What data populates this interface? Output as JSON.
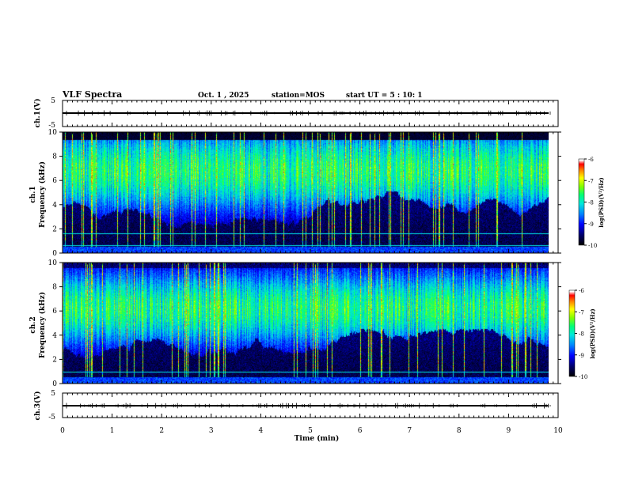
{
  "header": {
    "title": "VLF Spectra",
    "date": "Oct. 1 , 2025",
    "station": "station=MOS",
    "start_time": "start UT =  5 : 10: 1"
  },
  "chart_data": [
    {
      "type": "line",
      "name": "ch1-waveform",
      "ylabel": "ch.1(V)",
      "ylim": [
        -5,
        5
      ],
      "y_ticks": [
        "5",
        "-5"
      ],
      "baseline": 0,
      "xlim": [
        0,
        10
      ]
    },
    {
      "type": "heatmap",
      "name": "ch1-spectrogram",
      "ylabel_channel": "ch.1",
      "ylabel": "Frequency (kHz)",
      "ylim": [
        0,
        10
      ],
      "y_ticks": [
        "0",
        "2",
        "4",
        "6",
        "8",
        "10"
      ],
      "xlim": [
        0,
        9.85
      ],
      "band_center_khz": 6.8,
      "band_low_khz": 3.6,
      "band_high_khz": 9.6,
      "narrowband_lines_khz": [
        0.6,
        1.6
      ],
      "colorbar": {
        "label": "log(PSD)(V²/Hz)",
        "min": -10,
        "max": -6,
        "ticks": [
          "-6",
          "-7",
          "-8",
          "-9",
          "-10"
        ]
      }
    },
    {
      "type": "heatmap",
      "name": "ch2-spectrogram",
      "ylabel_channel": "ch.2",
      "ylabel": "Frequency (kHz)",
      "ylim": [
        0,
        10
      ],
      "y_ticks": [
        "0",
        "2",
        "4",
        "6",
        "8",
        "10"
      ],
      "xlim": [
        0,
        9.85
      ],
      "band_center_khz": 6.2,
      "band_low_khz": 3.0,
      "band_high_khz": 9.6,
      "narrowband_lines_khz": [
        0.9
      ],
      "colorbar": {
        "label": "log(PSD)(V²/Hz)",
        "min": -10,
        "max": -6,
        "ticks": [
          "-6",
          "-7",
          "-8",
          "-9",
          "-10"
        ]
      }
    },
    {
      "type": "line",
      "name": "ch3-waveform",
      "ylabel": "ch.3(V)",
      "ylim": [
        -5,
        5
      ],
      "y_ticks": [
        "5",
        "-5"
      ],
      "baseline": 0,
      "xlim": [
        0,
        10
      ]
    }
  ],
  "xaxis": {
    "label": "Time  (min)",
    "range": [
      0,
      10
    ],
    "ticks": [
      "0",
      "1",
      "2",
      "3",
      "4",
      "5",
      "6",
      "7",
      "8",
      "9",
      "10"
    ]
  },
  "colors": {
    "colormap": [
      "#000000",
      "#000080",
      "#0000ff",
      "#0080ff",
      "#00e0e0",
      "#00ff80",
      "#80ff00",
      "#ffff00",
      "#ff8000",
      "#ff0000",
      "#e00000",
      "#ffffff"
    ],
    "narrowband_line": "#00e5e5"
  }
}
